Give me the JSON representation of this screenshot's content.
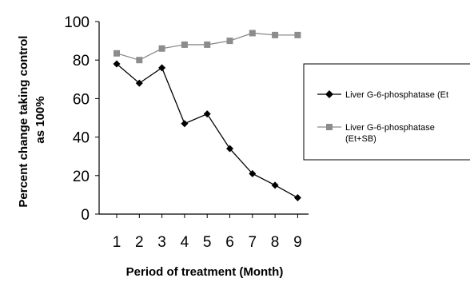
{
  "chart_data": {
    "type": "line",
    "title": "",
    "xlabel": "Period of treatment (Month)",
    "ylabel_lines": [
      "Percent change taking control",
      "as 100%"
    ],
    "ylim": [
      0,
      100
    ],
    "yticks": [
      "0",
      "20",
      "40",
      "60",
      "80",
      "100"
    ],
    "categories": [
      "1",
      "2",
      "3",
      "4",
      "5",
      "6",
      "7",
      "8",
      "9"
    ],
    "legend_position": "right",
    "series": [
      {
        "legend_lines": [
          "Liver G-6-phosphatase (Et"
        ],
        "marker": "diamond",
        "color": "#000000",
        "values": [
          78,
          68,
          76,
          47,
          52,
          34,
          21,
          15,
          8.5
        ]
      },
      {
        "legend_lines": [
          "Liver G-6-phosphatase",
          "(Et+SB)"
        ],
        "marker": "square",
        "color": "#8c8c8c",
        "values": [
          83.5,
          80,
          86,
          88,
          88,
          90,
          94,
          93,
          93
        ]
      }
    ]
  }
}
